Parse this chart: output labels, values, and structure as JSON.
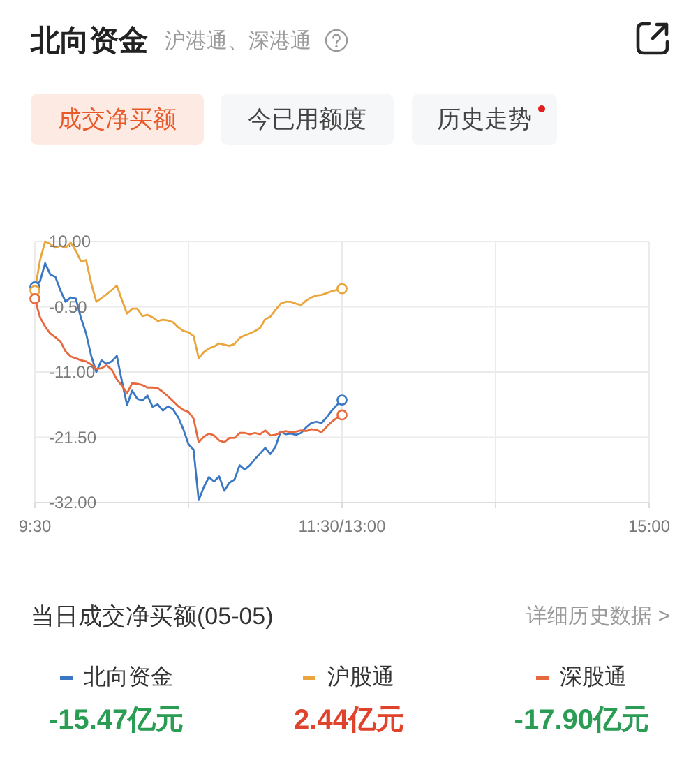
{
  "chart_data": {
    "type": "line",
    "title": "北向资金",
    "subtitle": "沪港通、深港通",
    "annotations": [
      "成交净买额",
      "今已用额度",
      "历史走势",
      "当日成交净买额(05-05)",
      "详细历史数据 >",
      "-15.47亿元",
      "2.44亿元",
      "-17.90亿元"
    ],
    "categories": [
      "9:30",
      null,
      null,
      null,
      null,
      null,
      null,
      null,
      null,
      null,
      null,
      null,
      null,
      null,
      null,
      null,
      null,
      null,
      null,
      null,
      null,
      null,
      null,
      null,
      null,
      null,
      null,
      null,
      null,
      null,
      null,
      null,
      null,
      null,
      null,
      null,
      null,
      null,
      null,
      null,
      null,
      null,
      null,
      null,
      null,
      null,
      null,
      null,
      null,
      null,
      null,
      null,
      null,
      null,
      null,
      null,
      null,
      null,
      null,
      null,
      "11:30/13:00",
      null,
      null,
      null,
      null,
      null,
      null,
      null,
      null,
      null,
      null,
      null,
      null,
      null,
      null,
      null,
      null,
      null,
      null,
      null,
      null,
      null,
      null,
      null,
      null,
      null,
      null,
      null,
      null,
      null,
      null,
      null,
      null,
      null,
      null,
      null,
      null,
      null,
      null,
      null,
      null,
      null,
      null,
      null,
      null,
      null,
      null,
      null,
      null,
      null,
      null,
      null,
      null,
      null,
      null,
      null,
      null,
      null,
      null,
      null,
      "15:00"
    ],
    "ylim": [
      -32,
      10
    ],
    "yticks": [
      {
        "value": 10,
        "label": "10.00"
      },
      {
        "value": -0.5,
        "label": "-0.50"
      },
      {
        "value": -11,
        "label": "-11.00"
      },
      {
        "value": -21.5,
        "label": "-21.50"
      },
      {
        "value": -32,
        "label": "-32.00"
      }
    ],
    "grid": true,
    "legend": "bottom",
    "line_style": "solid",
    "series": [
      {
        "name": "北向资金",
        "color": "#3b78c4",
        "values": [
          2.7,
          3.6,
          6.5,
          4.7,
          4.3,
          2.1,
          0.3,
          1.0,
          0.8,
          -2.3,
          -4.8,
          -8.4,
          -11.0,
          -9.1,
          -9.7,
          -9.3,
          -8.4,
          -12.5,
          -16.3,
          -14.0,
          -15.3,
          -15.6,
          -14.8,
          -16.6,
          -16.2,
          -17.2,
          -16.5,
          -17.0,
          -18.3,
          -20.2,
          -22.6,
          -23.5,
          -31.6,
          -29.5,
          -27.9,
          -28.6,
          -27.8,
          -30.1,
          -28.8,
          -28.3,
          -26.0,
          -26.7,
          -26.0,
          -25.0,
          -24.1,
          -23.2,
          -24.2,
          -23.0,
          -20.6,
          -21.0,
          -20.9,
          -21.1,
          -20.8,
          -19.9,
          -19.2,
          -19.0,
          -19.2,
          -18.3,
          -17.2,
          -16.3,
          -15.5,
          null,
          null,
          null,
          null,
          null,
          null,
          null,
          null,
          null,
          null,
          null,
          null,
          null,
          null,
          null,
          null,
          null,
          null,
          null,
          null,
          null,
          null,
          null,
          null,
          null,
          null,
          null,
          null,
          null,
          null,
          null,
          null,
          null,
          null,
          null,
          null,
          null,
          null,
          null,
          null,
          null,
          null,
          null,
          null,
          null,
          null,
          null,
          null,
          null,
          null,
          null,
          null,
          null,
          null,
          null,
          null,
          null,
          null,
          null,
          null
        ]
      },
      {
        "name": "沪股通",
        "color": "#eaa63c",
        "values": [
          2.1,
          7.0,
          10.0,
          9.6,
          9.0,
          9.3,
          9.0,
          9.8,
          8.5,
          6.8,
          7.0,
          3.3,
          0.3,
          0.9,
          1.5,
          2.2,
          2.9,
          0.6,
          -1.6,
          -0.8,
          -0.8,
          -2.0,
          -1.8,
          -2.2,
          -2.8,
          -2.6,
          -2.7,
          -3.0,
          -3.8,
          -4.4,
          -4.6,
          -5.2,
          -8.8,
          -7.8,
          -7.2,
          -6.9,
          -6.4,
          -6.6,
          -6.8,
          -6.5,
          -5.5,
          -5.1,
          -4.8,
          -4.4,
          -3.9,
          -2.5,
          -2.1,
          -1.0,
          0.0,
          0.3,
          0.3,
          0.0,
          -0.2,
          0.5,
          1.0,
          1.3,
          1.4,
          1.7,
          2.0,
          2.2,
          2.4,
          null,
          null,
          null,
          null,
          null,
          null,
          null,
          null,
          null,
          null,
          null,
          null,
          null,
          null,
          null,
          null,
          null,
          null,
          null,
          null,
          null,
          null,
          null,
          null,
          null,
          null,
          null,
          null,
          null,
          null,
          null,
          null,
          null,
          null,
          null,
          null,
          null,
          null,
          null,
          null,
          null,
          null,
          null,
          null,
          null,
          null,
          null,
          null,
          null,
          null,
          null,
          null,
          null,
          null,
          null,
          null,
          null,
          null,
          null,
          null
        ]
      },
      {
        "name": "深股通",
        "color": "#e8693d",
        "values": [
          0.8,
          -2.2,
          -3.7,
          -4.8,
          -5.4,
          -6.1,
          -7.7,
          -8.5,
          -8.8,
          -9.1,
          -9.3,
          -9.8,
          -10.5,
          -10.4,
          -9.9,
          -10.6,
          -12.2,
          -13.2,
          -14.4,
          -12.8,
          -12.9,
          -13.1,
          -13.5,
          -13.5,
          -13.6,
          -14.2,
          -14.9,
          -15.7,
          -16.5,
          -17.1,
          -17.4,
          -18.5,
          -22.3,
          -21.4,
          -20.9,
          -21.2,
          -22.0,
          -22.3,
          -21.6,
          -21.6,
          -20.8,
          -20.8,
          -21.0,
          -20.8,
          -21.0,
          -20.4,
          -21.2,
          -21.1,
          -20.7,
          -20.5,
          -20.7,
          -20.6,
          -20.4,
          -20.5,
          -20.2,
          -20.3,
          -20.7,
          -19.8,
          -19.0,
          -18.4,
          -17.9,
          null,
          null,
          null,
          null,
          null,
          null,
          null,
          null,
          null,
          null,
          null,
          null,
          null,
          null,
          null,
          null,
          null,
          null,
          null,
          null,
          null,
          null,
          null,
          null,
          null,
          null,
          null,
          null,
          null,
          null,
          null,
          null,
          null,
          null,
          null,
          null,
          null,
          null,
          null,
          null,
          null,
          null,
          null,
          null,
          null,
          null,
          null,
          null,
          null,
          null,
          null,
          null,
          null,
          null,
          null,
          null,
          null,
          null,
          null,
          null
        ]
      },
      {
        "type": "scatter",
        "marker": "circle",
        "color": "#3b78c4",
        "values": [
          2.7,
          null,
          null,
          null,
          null,
          null,
          null,
          null,
          null,
          null,
          null,
          null,
          null,
          null,
          null,
          null,
          null,
          null,
          null,
          null,
          null,
          null,
          null,
          null,
          null,
          null,
          null,
          null,
          null,
          null,
          null,
          null,
          null,
          null,
          null,
          null,
          null,
          null,
          null,
          null,
          null,
          null,
          null,
          null,
          null,
          null,
          null,
          null,
          null,
          null,
          null,
          null,
          null,
          null,
          null,
          null,
          null,
          null,
          null,
          null,
          -15.5,
          null,
          null,
          null,
          null,
          null,
          null,
          null,
          null,
          null,
          null,
          null,
          null,
          null,
          null,
          null,
          null,
          null,
          null,
          null,
          null,
          null,
          null,
          null,
          null,
          null,
          null,
          null,
          null,
          null,
          null,
          null,
          null,
          null,
          null,
          null,
          null,
          null,
          null,
          null,
          null,
          null,
          null,
          null,
          null,
          null,
          null,
          null,
          null,
          null,
          null,
          null,
          null,
          null,
          null,
          null,
          null,
          null,
          null,
          null,
          null
        ]
      },
      {
        "type": "scatter",
        "marker": "circle",
        "color": "#eaa63c",
        "values": [
          2.1,
          null,
          null,
          null,
          null,
          null,
          null,
          null,
          null,
          null,
          null,
          null,
          null,
          null,
          null,
          null,
          null,
          null,
          null,
          null,
          null,
          null,
          null,
          null,
          null,
          null,
          null,
          null,
          null,
          null,
          null,
          null,
          null,
          null,
          null,
          null,
          null,
          null,
          null,
          null,
          null,
          null,
          null,
          null,
          null,
          null,
          null,
          null,
          null,
          null,
          null,
          null,
          null,
          null,
          null,
          null,
          null,
          null,
          null,
          null,
          2.4,
          null,
          null,
          null,
          null,
          null,
          null,
          null,
          null,
          null,
          null,
          null,
          null,
          null,
          null,
          null,
          null,
          null,
          null,
          null,
          null,
          null,
          null,
          null,
          null,
          null,
          null,
          null,
          null,
          null,
          null,
          null,
          null,
          null,
          null,
          null,
          null,
          null,
          null,
          null,
          null,
          null,
          null,
          null,
          null,
          null,
          null,
          null,
          null,
          null,
          null,
          null,
          null,
          null,
          null,
          null,
          null,
          null,
          null,
          null,
          null
        ]
      },
      {
        "type": "scatter",
        "marker": "circle",
        "color": "#e8693d",
        "values": [
          0.8,
          null,
          null,
          null,
          null,
          null,
          null,
          null,
          null,
          null,
          null,
          null,
          null,
          null,
          null,
          null,
          null,
          null,
          null,
          null,
          null,
          null,
          null,
          null,
          null,
          null,
          null,
          null,
          null,
          null,
          null,
          null,
          null,
          null,
          null,
          null,
          null,
          null,
          null,
          null,
          null,
          null,
          null,
          null,
          null,
          null,
          null,
          null,
          null,
          null,
          null,
          null,
          null,
          null,
          null,
          null,
          null,
          null,
          null,
          null,
          -17.9,
          null,
          null,
          null,
          null,
          null,
          null,
          null,
          null,
          null,
          null,
          null,
          null,
          null,
          null,
          null,
          null,
          null,
          null,
          null,
          null,
          null,
          null,
          null,
          null,
          null,
          null,
          null,
          null,
          null,
          null,
          null,
          null,
          null,
          null,
          null,
          null,
          null,
          null,
          null,
          null,
          null,
          null,
          null,
          null,
          null,
          null,
          null,
          null,
          null,
          null,
          null,
          null,
          null,
          null,
          null,
          null,
          null,
          null,
          null,
          null
        ]
      }
    ]
  }
}
